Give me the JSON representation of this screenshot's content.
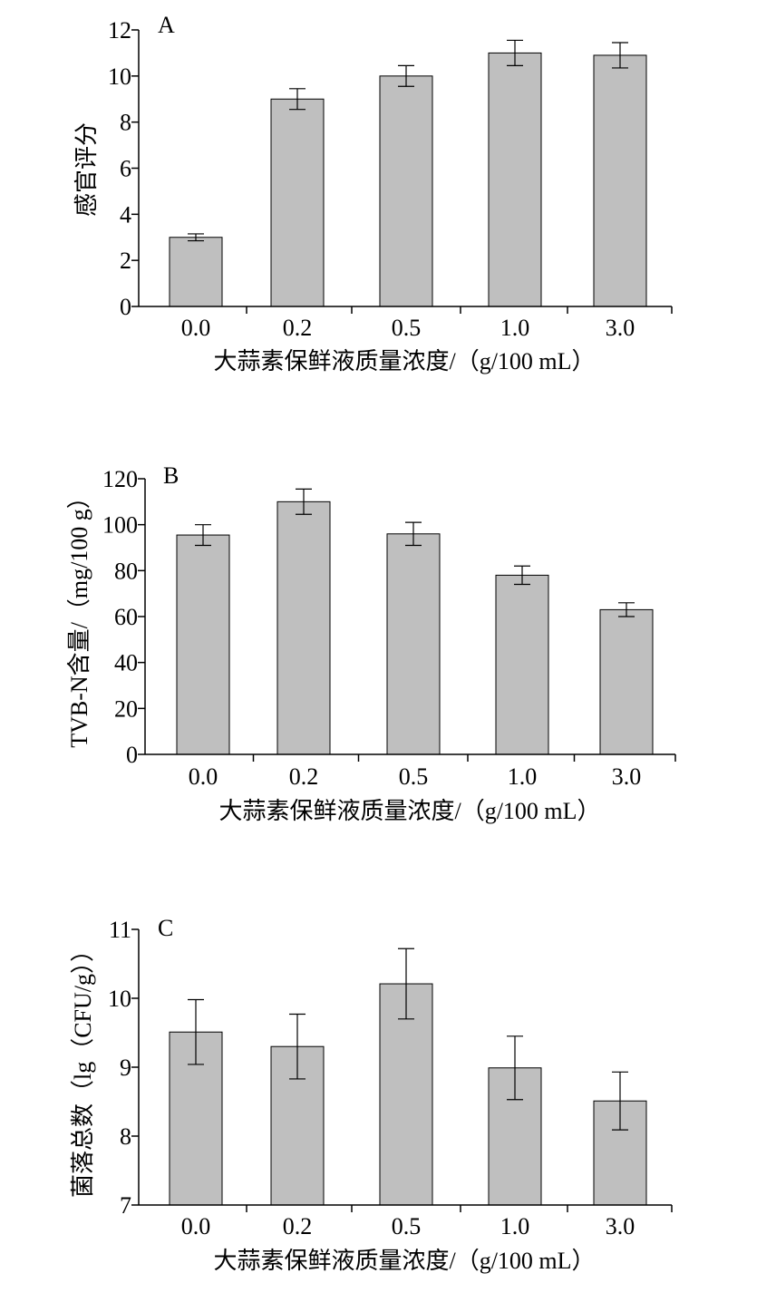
{
  "colors": {
    "bar_fill": "#bfbfbf",
    "bar_stroke": "#000000",
    "axis": "#000000",
    "background": "#ffffff"
  },
  "chart_data": [
    {
      "type": "bar",
      "panel_label": "A",
      "categories": [
        "0.0",
        "0.2",
        "0.5",
        "1.0",
        "3.0"
      ],
      "values": [
        3.0,
        9.0,
        10.0,
        11.0,
        10.9
      ],
      "errors": [
        0.15,
        0.45,
        0.45,
        0.55,
        0.55
      ],
      "xlabel": "大蒜素保鲜液质量浓度/（g/100 mL）",
      "ylabel": "感官评分",
      "ylim": [
        0,
        12
      ],
      "yticks": [
        "0",
        "2",
        "4",
        "6",
        "8",
        "10",
        "12"
      ],
      "grid": false
    },
    {
      "type": "bar",
      "panel_label": "B",
      "categories": [
        "0.0",
        "0.2",
        "0.5",
        "1.0",
        "3.0"
      ],
      "values": [
        95.5,
        110.0,
        96.0,
        78.0,
        63.0
      ],
      "errors": [
        4.5,
        5.5,
        5.0,
        4.0,
        3.0
      ],
      "xlabel": "大蒜素保鲜液质量浓度/（g/100 mL）",
      "ylabel": "TVB-N含量/（mg/100 g）",
      "ylim": [
        0,
        120
      ],
      "yticks": [
        "0",
        "20",
        "40",
        "60",
        "80",
        "100",
        "120"
      ],
      "grid": false
    },
    {
      "type": "bar",
      "panel_label": "C",
      "categories": [
        "0.0",
        "0.2",
        "0.5",
        "1.0",
        "3.0"
      ],
      "values": [
        9.51,
        9.3,
        10.21,
        8.99,
        8.51
      ],
      "errors": [
        0.47,
        0.47,
        0.51,
        0.46,
        0.42
      ],
      "xlabel": "大蒜素保鲜液质量浓度/（g/100 mL）",
      "ylabel": "菌落总数（lg（CFU/g））",
      "ylim": [
        7,
        11
      ],
      "yticks": [
        "7",
        "8",
        "9",
        "10",
        "11"
      ],
      "grid": false
    }
  ]
}
